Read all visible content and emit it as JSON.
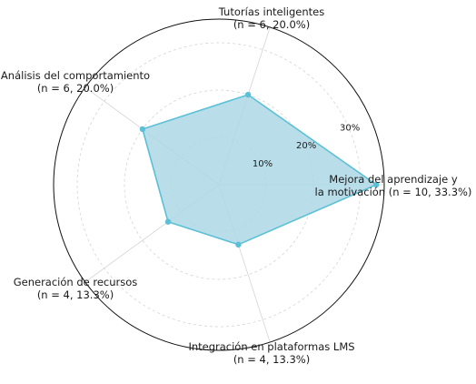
{
  "chart_data": {
    "type": "radar",
    "title": "",
    "categories": [
      {
        "label": [
          "Mejora del aprendizaje y",
          "la motivación (n = 10, 33.3%)"
        ],
        "n": 10,
        "value": 33.3
      },
      {
        "label": [
          "Tutorías inteligentes",
          "(n = 6, 20.0%)"
        ],
        "n": 6,
        "value": 20.0
      },
      {
        "label": [
          "Análisis del comportamiento",
          "(n = 6, 20.0%)"
        ],
        "n": 6,
        "value": 20.0
      },
      {
        "label": [
          "Generación de recursos",
          "(n = 4, 13.3%)"
        ],
        "n": 4,
        "value": 13.3
      },
      {
        "label": [
          "Integración en plataformas LMS",
          "(n = 4, 13.3%)"
        ],
        "n": 4,
        "value": 13.3
      }
    ],
    "series": [
      {
        "values": [
          33.3,
          20.0,
          20.0,
          13.3,
          13.3
        ],
        "color": "#5bc0d6",
        "fill": "#add8e6"
      }
    ],
    "r_ticks": [
      10,
      20,
      30
    ],
    "r_tick_labels": [
      "10%",
      "20%",
      "30%"
    ],
    "r_max": 35,
    "grid": true,
    "legend": "none"
  }
}
